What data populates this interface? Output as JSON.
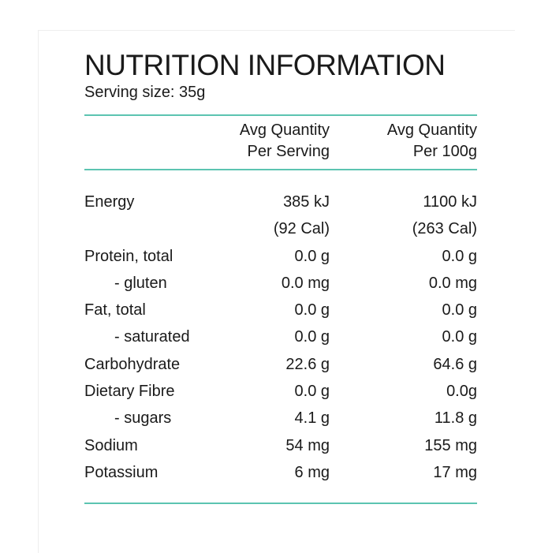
{
  "panel": {
    "title": "NUTRITION INFORMATION",
    "serving_size": "Serving size: 35g",
    "accent_color": "#5cc4b1"
  },
  "columns": {
    "per_serving": [
      "Avg Quantity",
      "Per Serving"
    ],
    "per_100g": [
      "Avg Quantity",
      "Per 100g"
    ]
  },
  "rows": [
    {
      "label": "Energy",
      "per_serving": "385 kJ",
      "per_100g": "1100 kJ",
      "sub": false
    },
    {
      "label": "",
      "per_serving": "(92 Cal)",
      "per_100g": "(263 Cal)",
      "sub": false
    },
    {
      "label": "Protein, total",
      "per_serving": "0.0 g",
      "per_100g": "0.0 g",
      "sub": false
    },
    {
      "label": "- gluten",
      "per_serving": "0.0 mg",
      "per_100g": "0.0 mg",
      "sub": true
    },
    {
      "label": "Fat, total",
      "per_serving": "0.0 g",
      "per_100g": "0.0 g",
      "sub": false
    },
    {
      "label": "- saturated",
      "per_serving": "0.0 g",
      "per_100g": "0.0 g",
      "sub": true
    },
    {
      "label": "Carbohydrate",
      "per_serving": "22.6 g",
      "per_100g": "64.6 g",
      "sub": false
    },
    {
      "label": "Dietary Fibre",
      "per_serving": "0.0 g",
      "per_100g": "0.0g",
      "sub": false
    },
    {
      "label": "- sugars",
      "per_serving": "4.1 g",
      "per_100g": "11.8 g",
      "sub": true
    },
    {
      "label": "Sodium",
      "per_serving": "54 mg",
      "per_100g": "155 mg",
      "sub": false
    },
    {
      "label": "Potassium",
      "per_serving": "6 mg",
      "per_100g": "17 mg",
      "sub": false
    }
  ]
}
